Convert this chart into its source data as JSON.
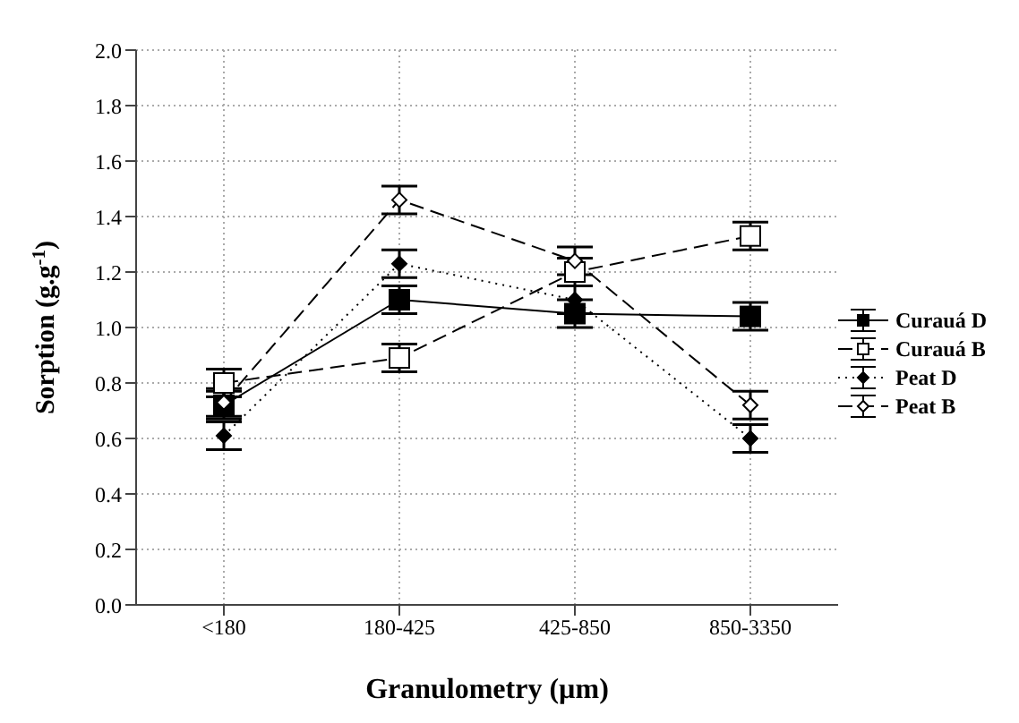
{
  "chart_data": {
    "type": "line",
    "xlabel": "Granulometry (µm)",
    "ylabel": "Sorption (g.g$^{-1}$)",
    "categories": [
      "<180",
      "180-425",
      "425-850",
      "850-3350"
    ],
    "series": [
      {
        "name": "Curauá D",
        "color": "#000000",
        "marker": "square",
        "line_style": "solid",
        "values": [
          0.72,
          1.1,
          1.05,
          1.04
        ],
        "errors": [
          0.05,
          0.05,
          0.05,
          0.05
        ]
      },
      {
        "name": "Curauá B",
        "color": "#000000",
        "marker": "square",
        "line_style": "dashed",
        "values": [
          0.8,
          0.89,
          1.2,
          1.33
        ],
        "errors": [
          0.05,
          0.05,
          0.05,
          0.05
        ]
      },
      {
        "name": "Peat D",
        "color": "#000000",
        "marker": "diamond",
        "line_style": "dotted",
        "values": [
          0.61,
          1.23,
          1.1,
          0.6
        ],
        "errors": [
          0.05,
          0.05,
          0.05,
          0.05
        ]
      },
      {
        "name": "Peat B",
        "color": "#000000",
        "marker": "diamond",
        "line_style": "dashed",
        "values": [
          0.73,
          1.46,
          1.24,
          0.72
        ],
        "errors": [
          0.05,
          0.05,
          0.05,
          0.05
        ]
      }
    ],
    "ylim": [
      0,
      2.0
    ],
    "yticks": [
      {
        "value": 0,
        "label": "0.0"
      },
      {
        "value": 0.2,
        "label": "0.2"
      },
      {
        "value": 0.4,
        "label": "0.4"
      },
      {
        "value": 0.6,
        "label": "0.6"
      },
      {
        "value": 0.8,
        "label": "0.8"
      },
      {
        "value": 1.0,
        "label": "1.0"
      },
      {
        "value": 1.2,
        "label": "1.2"
      },
      {
        "value": 1.4,
        "label": "1.4"
      },
      {
        "value": 1.6,
        "label": "1.6"
      },
      {
        "value": 1.8,
        "label": "1.8"
      },
      {
        "value": 2.0,
        "label": "2.0"
      }
    ],
    "grid": true,
    "legend": "right"
  }
}
